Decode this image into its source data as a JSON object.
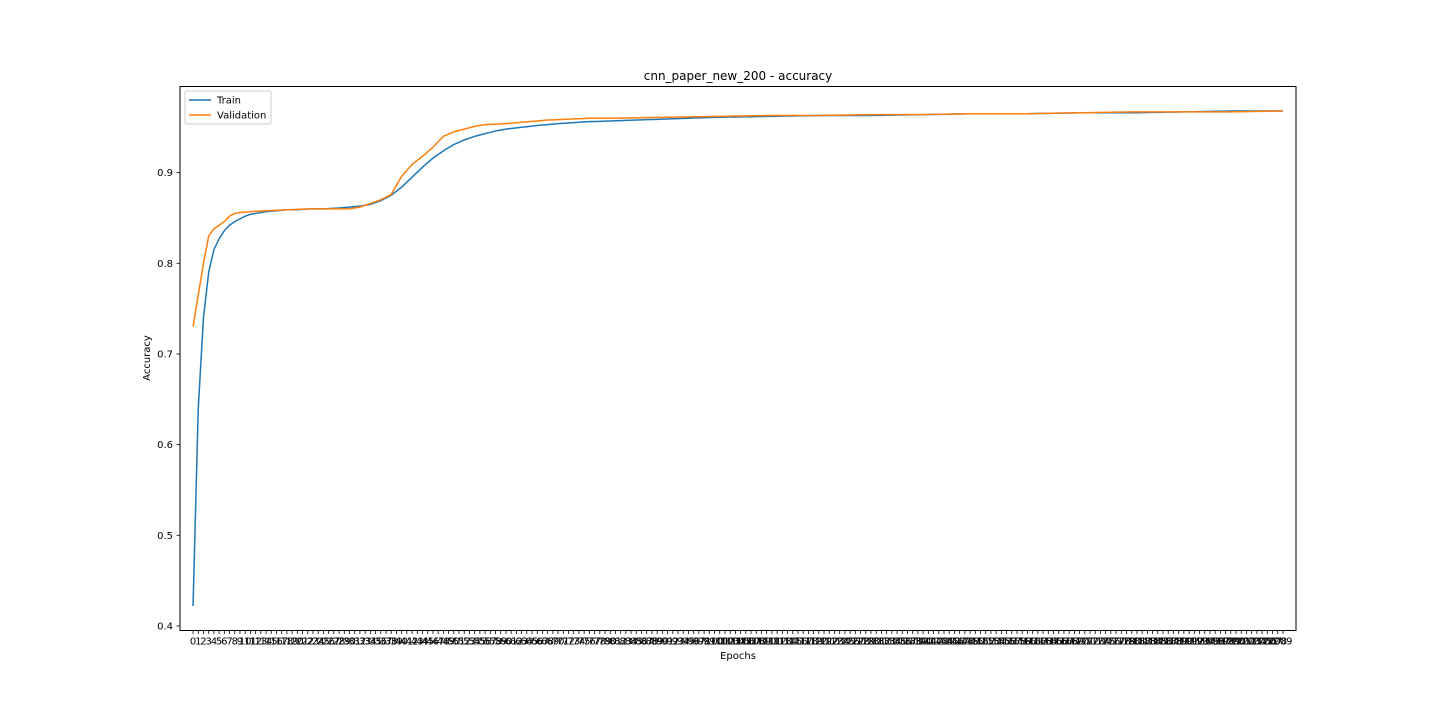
{
  "chart_data": {
    "type": "line",
    "title": "cnn_paper_new_200 - accuracy",
    "xlabel": "Epochs",
    "ylabel": "Accuracy",
    "xlim": [
      -2.5,
      211.5
    ],
    "ylim": [
      0.395,
      0.995
    ],
    "yticks": [
      0.4,
      0.5,
      0.6,
      0.7,
      0.8,
      0.9
    ],
    "grid": false,
    "legend_position": "top-left",
    "series": [
      {
        "name": "Train",
        "color": "#1f77b4",
        "points": [
          [
            0,
            0.422
          ],
          [
            1,
            0.64
          ],
          [
            2,
            0.74
          ],
          [
            3,
            0.79
          ],
          [
            4,
            0.815
          ],
          [
            5,
            0.827
          ],
          [
            6,
            0.836
          ],
          [
            7,
            0.842
          ],
          [
            8,
            0.846
          ],
          [
            9,
            0.849
          ],
          [
            10,
            0.852
          ],
          [
            11,
            0.854
          ],
          [
            12,
            0.855
          ],
          [
            14,
            0.857
          ],
          [
            16,
            0.858
          ],
          [
            18,
            0.859
          ],
          [
            20,
            0.859
          ],
          [
            22,
            0.86
          ],
          [
            25,
            0.86
          ],
          [
            28,
            0.861
          ],
          [
            30,
            0.862
          ],
          [
            32,
            0.863
          ],
          [
            34,
            0.865
          ],
          [
            36,
            0.869
          ],
          [
            38,
            0.875
          ],
          [
            40,
            0.884
          ],
          [
            42,
            0.895
          ],
          [
            44,
            0.906
          ],
          [
            46,
            0.916
          ],
          [
            48,
            0.924
          ],
          [
            50,
            0.931
          ],
          [
            52,
            0.936
          ],
          [
            54,
            0.94
          ],
          [
            56,
            0.943
          ],
          [
            58,
            0.946
          ],
          [
            60,
            0.948
          ],
          [
            63,
            0.95
          ],
          [
            66,
            0.952
          ],
          [
            70,
            0.954
          ],
          [
            75,
            0.956
          ],
          [
            80,
            0.957
          ],
          [
            85,
            0.958
          ],
          [
            90,
            0.959
          ],
          [
            95,
            0.96
          ],
          [
            100,
            0.961
          ],
          [
            110,
            0.962
          ],
          [
            120,
            0.963
          ],
          [
            130,
            0.963
          ],
          [
            140,
            0.964
          ],
          [
            150,
            0.965
          ],
          [
            160,
            0.965
          ],
          [
            170,
            0.966
          ],
          [
            180,
            0.966
          ],
          [
            190,
            0.967
          ],
          [
            199,
            0.968
          ],
          [
            209,
            0.968
          ]
        ]
      },
      {
        "name": "Validation",
        "color": "#ff7f0e",
        "points": [
          [
            0,
            0.73
          ],
          [
            1,
            0.765
          ],
          [
            2,
            0.8
          ],
          [
            3,
            0.83
          ],
          [
            4,
            0.838
          ],
          [
            5,
            0.842
          ],
          [
            6,
            0.846
          ],
          [
            7,
            0.852
          ],
          [
            8,
            0.855
          ],
          [
            9,
            0.856
          ],
          [
            11,
            0.857
          ],
          [
            14,
            0.858
          ],
          [
            18,
            0.859
          ],
          [
            22,
            0.86
          ],
          [
            26,
            0.86
          ],
          [
            30,
            0.86
          ],
          [
            32,
            0.862
          ],
          [
            34,
            0.866
          ],
          [
            36,
            0.87
          ],
          [
            38,
            0.876
          ],
          [
            40,
            0.896
          ],
          [
            42,
            0.909
          ],
          [
            44,
            0.918
          ],
          [
            46,
            0.928
          ],
          [
            48,
            0.94
          ],
          [
            50,
            0.945
          ],
          [
            52,
            0.948
          ],
          [
            54,
            0.951
          ],
          [
            56,
            0.953
          ],
          [
            60,
            0.954
          ],
          [
            64,
            0.956
          ],
          [
            68,
            0.958
          ],
          [
            72,
            0.959
          ],
          [
            76,
            0.96
          ],
          [
            80,
            0.96
          ],
          [
            90,
            0.961
          ],
          [
            100,
            0.962
          ],
          [
            110,
            0.963
          ],
          [
            120,
            0.963
          ],
          [
            130,
            0.964
          ],
          [
            140,
            0.964
          ],
          [
            150,
            0.965
          ],
          [
            160,
            0.965
          ],
          [
            170,
            0.966
          ],
          [
            180,
            0.967
          ],
          [
            190,
            0.967
          ],
          [
            199,
            0.967
          ],
          [
            209,
            0.968
          ]
        ]
      }
    ]
  }
}
